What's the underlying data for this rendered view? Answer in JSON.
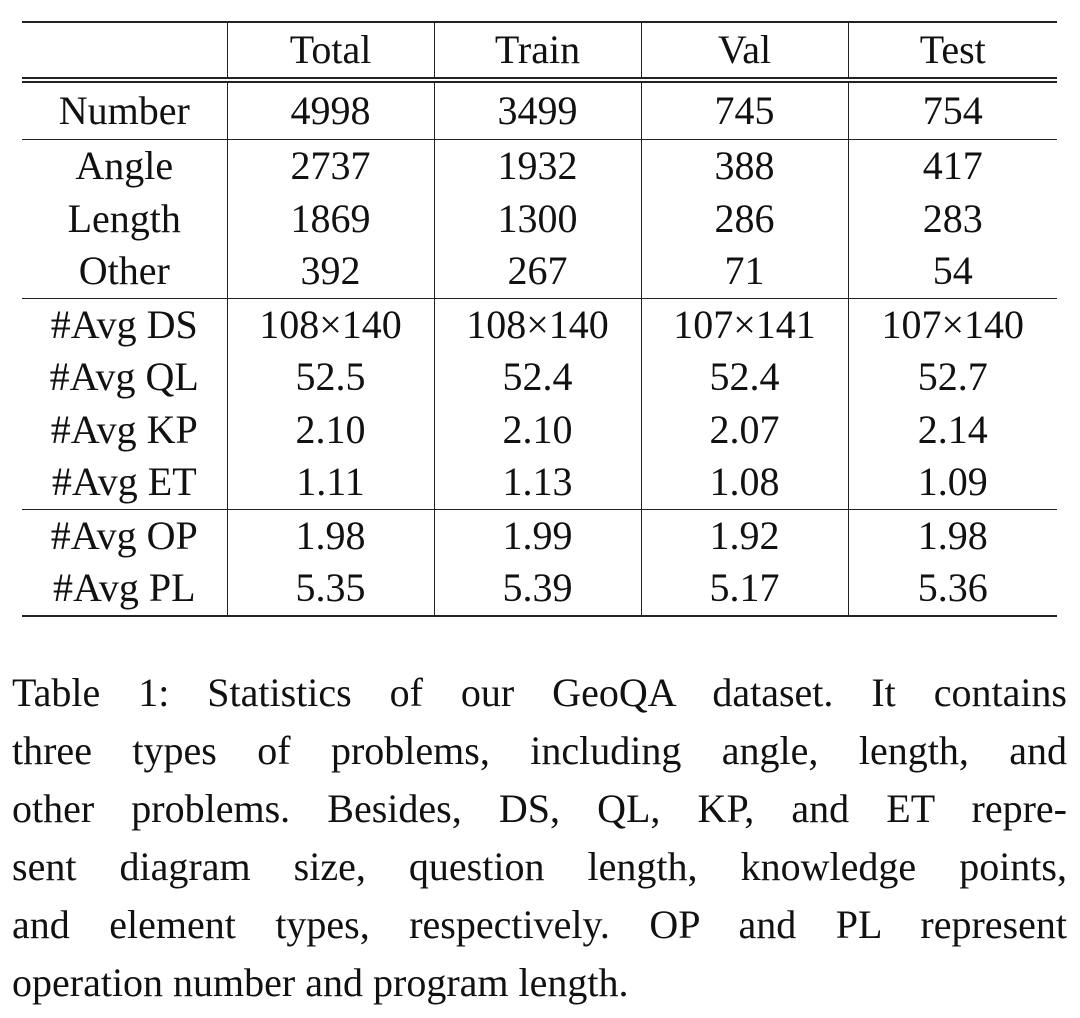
{
  "table": {
    "columns": [
      "",
      "Total",
      "Train",
      "Val",
      "Test"
    ],
    "rows": [
      {
        "label": "Number",
        "values": [
          "4998",
          "3499",
          "745",
          "754"
        ]
      },
      {
        "label": "Angle",
        "values": [
          "2737",
          "1932",
          "388",
          "417"
        ]
      },
      {
        "label": "Length",
        "values": [
          "1869",
          "1300",
          "286",
          "283"
        ]
      },
      {
        "label": "Other",
        "values": [
          "392",
          "267",
          "71",
          "54"
        ]
      },
      {
        "label": "#Avg DS",
        "values": [
          "108×140",
          "108×140",
          "107×141",
          "107×140"
        ]
      },
      {
        "label": "#Avg QL",
        "values": [
          "52.5",
          "52.4",
          "52.4",
          "52.7"
        ]
      },
      {
        "label": "#Avg KP",
        "values": [
          "2.10",
          "2.10",
          "2.07",
          "2.14"
        ]
      },
      {
        "label": "#Avg ET",
        "values": [
          "1.11",
          "1.13",
          "1.08",
          "1.09"
        ]
      },
      {
        "label": "#Avg OP",
        "values": [
          "1.98",
          "1.99",
          "1.92",
          "1.98"
        ]
      },
      {
        "label": "#Avg PL",
        "values": [
          "5.35",
          "5.39",
          "5.17",
          "5.36"
        ]
      }
    ]
  },
  "caption": {
    "text": "Table 1: Statistics of our GeoQA dataset. It contains three types of problems, including angle, length, and other problems. Besides, DS, QL, KP, and ET repre- sent diagram size, question length, knowledge points, and element types, respectively. OP and PL represent operation number and program length.",
    "lines": [
      "Table 1: Statistics of our GeoQA dataset. It contains",
      "three types of problems, including angle, length, and",
      "other problems. Besides, DS, QL, KP, and ET repre-",
      "sent diagram size, question length, knowledge points,",
      "and element types, respectively. OP and PL represent",
      "operation number and program length."
    ]
  }
}
